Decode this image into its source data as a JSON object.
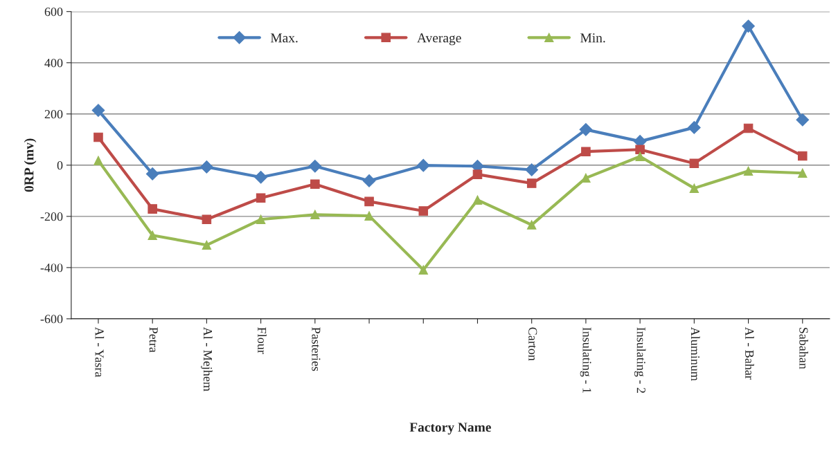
{
  "chart_data": {
    "type": "line",
    "xlabel": "Factory Name",
    "ylabel": "0RP (mv)",
    "categories": [
      "Al - Yasra",
      "Petra",
      "Al - Mejhem",
      "Flour",
      "Pasteries",
      null,
      null,
      null,
      "Carton",
      "Insulating - 1",
      "Insulating - 2",
      "Aluminum",
      "Al - Bahar",
      "Sabahan"
    ],
    "series": [
      {
        "name": "Max.",
        "color": "#4a7ebb",
        "marker": "diamond",
        "values": [
          214,
          -34,
          -7,
          -47,
          -4,
          -61,
          -1,
          -4,
          -18,
          139,
          93,
          147,
          543,
          177
        ]
      },
      {
        "name": "Average",
        "color": "#be4b48",
        "marker": "square",
        "values": [
          109,
          -171,
          -212,
          -128,
          -74,
          -142,
          -179,
          -36,
          -71,
          53,
          61,
          7,
          144,
          36
        ]
      },
      {
        "name": "Min.",
        "color": "#98b954",
        "marker": "triangle",
        "values": [
          18,
          -274,
          -312,
          -212,
          -193,
          -198,
          -409,
          -136,
          -233,
          -50,
          34,
          -90,
          -23,
          -31
        ]
      }
    ],
    "ylim": [
      -600,
      600
    ],
    "yticks": [
      -600,
      -400,
      -200,
      0,
      200,
      400,
      600
    ],
    "grid": "y",
    "legend": "top"
  }
}
